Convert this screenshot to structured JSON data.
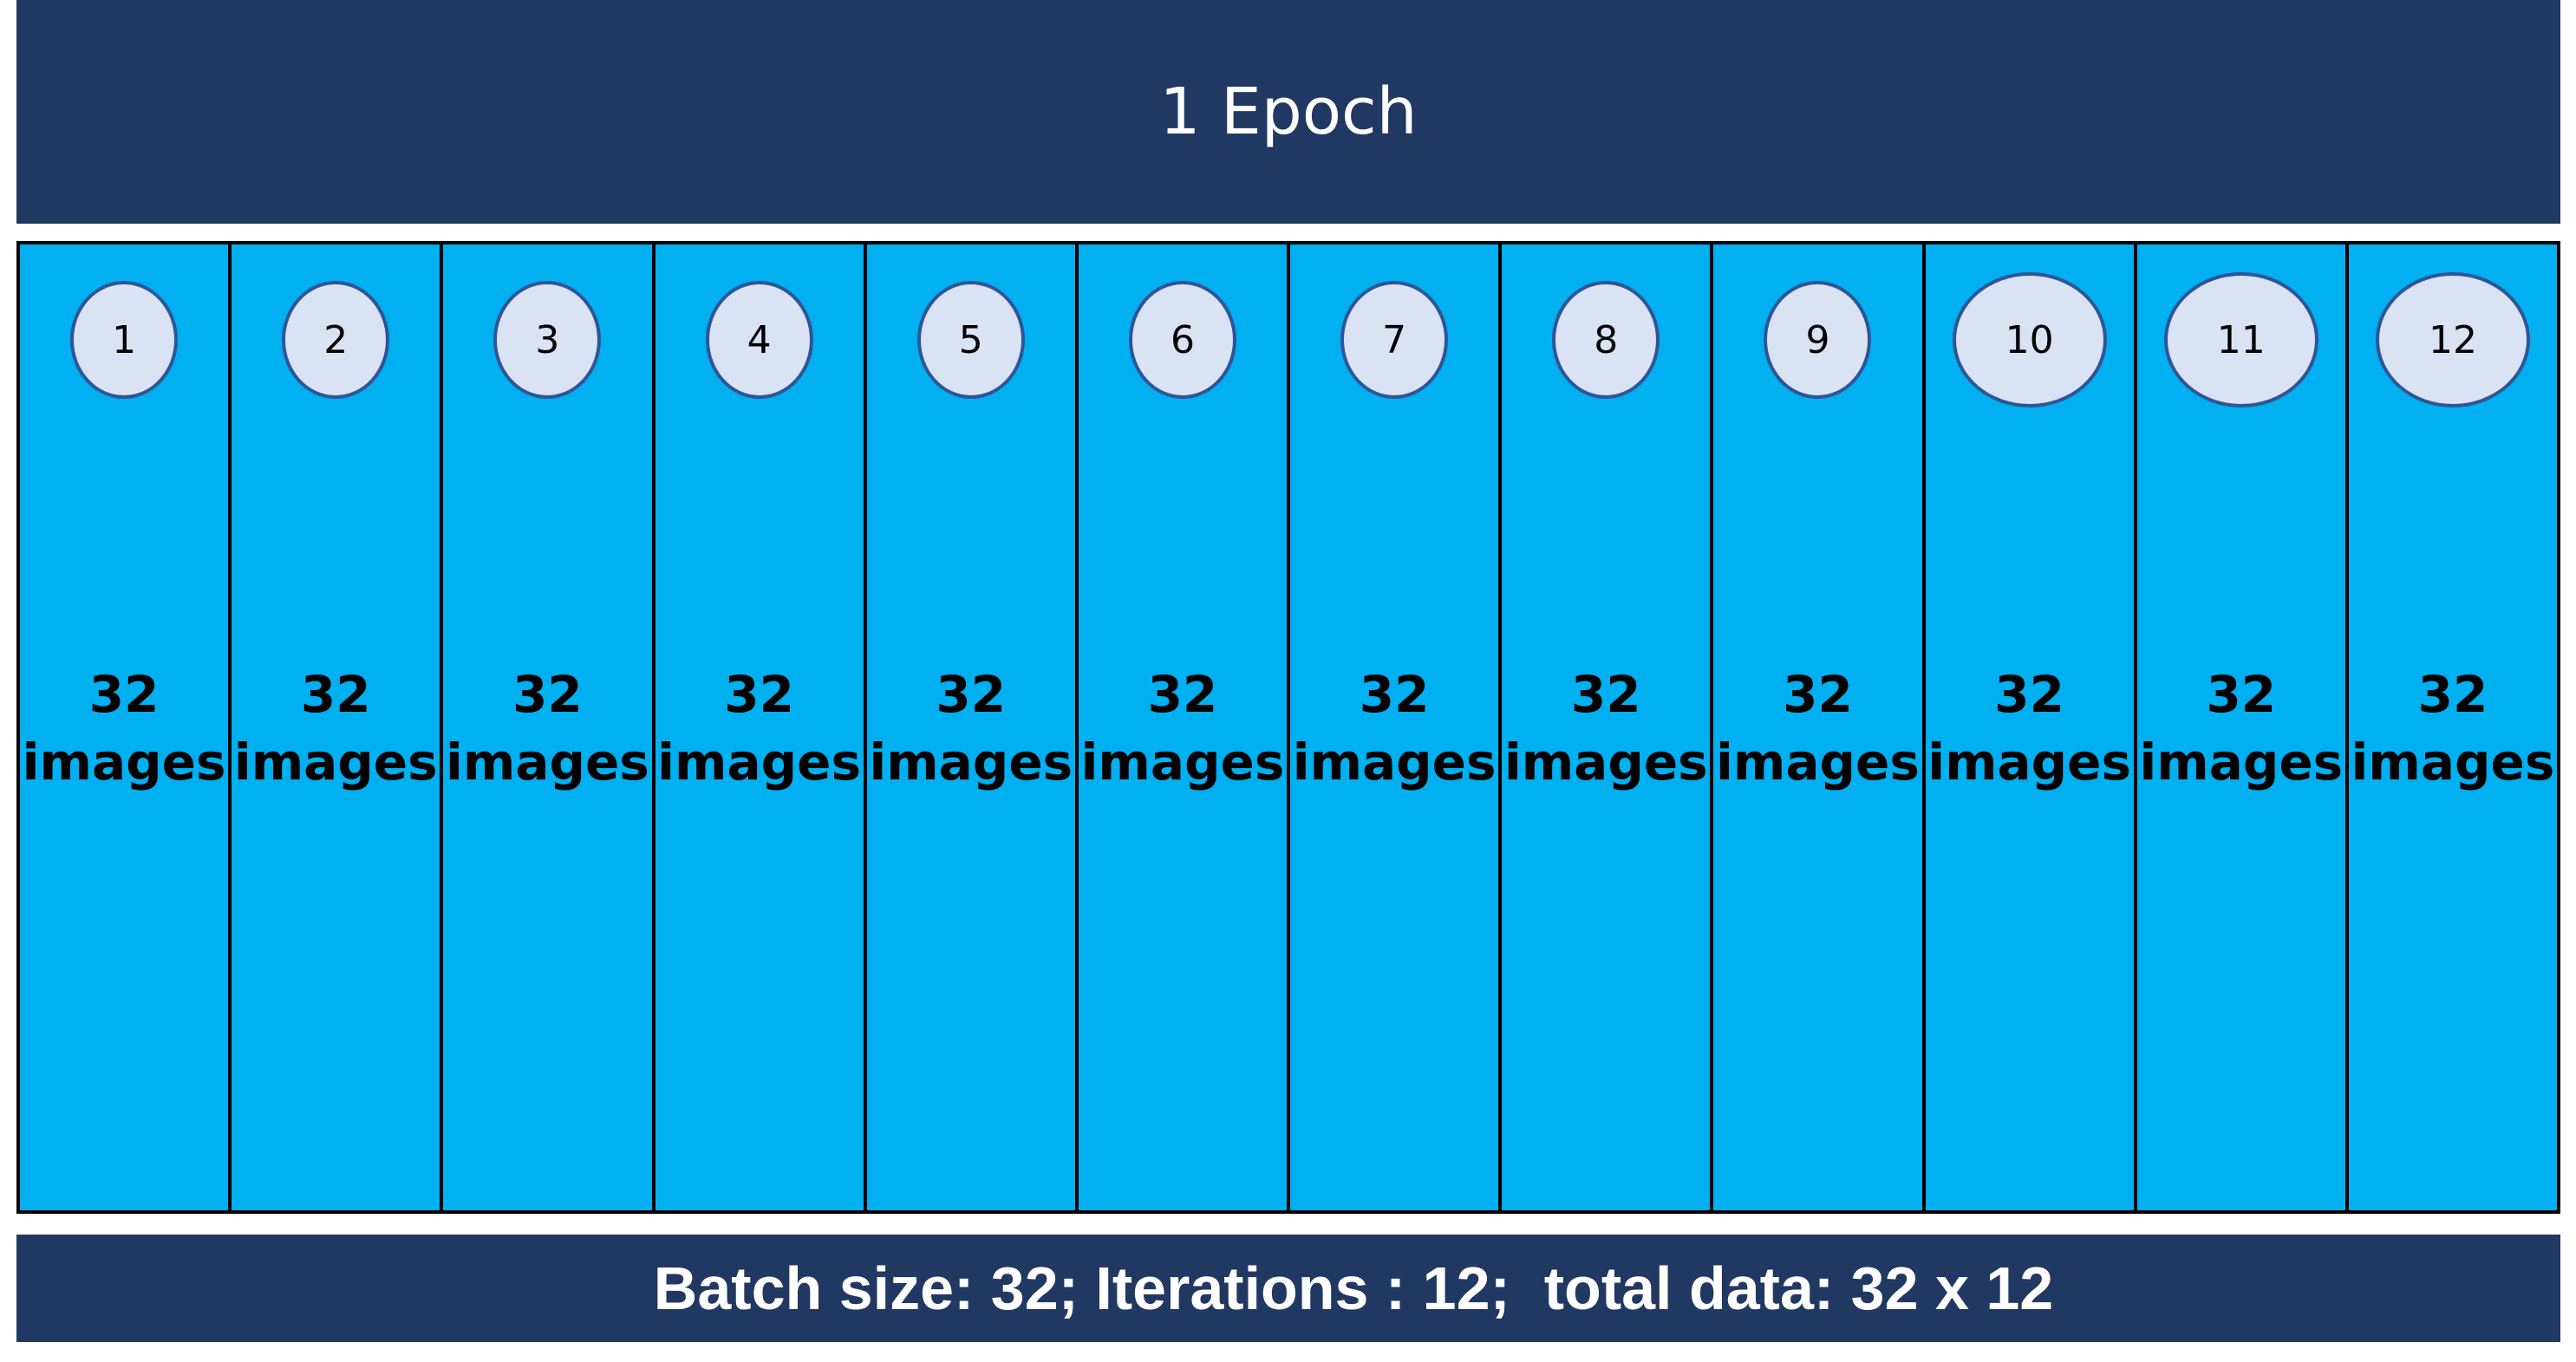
{
  "title": "1 Epoch",
  "batches": [
    {
      "number": "1",
      "count": "32",
      "unit": "images"
    },
    {
      "number": "2",
      "count": "32",
      "unit": "images"
    },
    {
      "number": "3",
      "count": "32",
      "unit": "images"
    },
    {
      "number": "4",
      "count": "32",
      "unit": "images"
    },
    {
      "number": "5",
      "count": "32",
      "unit": "images"
    },
    {
      "number": "6",
      "count": "32",
      "unit": "images"
    },
    {
      "number": "7",
      "count": "32",
      "unit": "images"
    },
    {
      "number": "8",
      "count": "32",
      "unit": "images"
    },
    {
      "number": "9",
      "count": "32",
      "unit": "images"
    },
    {
      "number": "10",
      "count": "32",
      "unit": "images"
    },
    {
      "number": "11",
      "count": "32",
      "unit": "images"
    },
    {
      "number": "12",
      "count": "32",
      "unit": "images"
    }
  ],
  "footer": "Batch size: 32; Iterations : 12;  total data: 32 x 12",
  "colors": {
    "header_bg": "#213862",
    "batch_bg": "#00b0f0",
    "badge_bg": "#dae3f3",
    "badge_border": "#2f5597"
  }
}
